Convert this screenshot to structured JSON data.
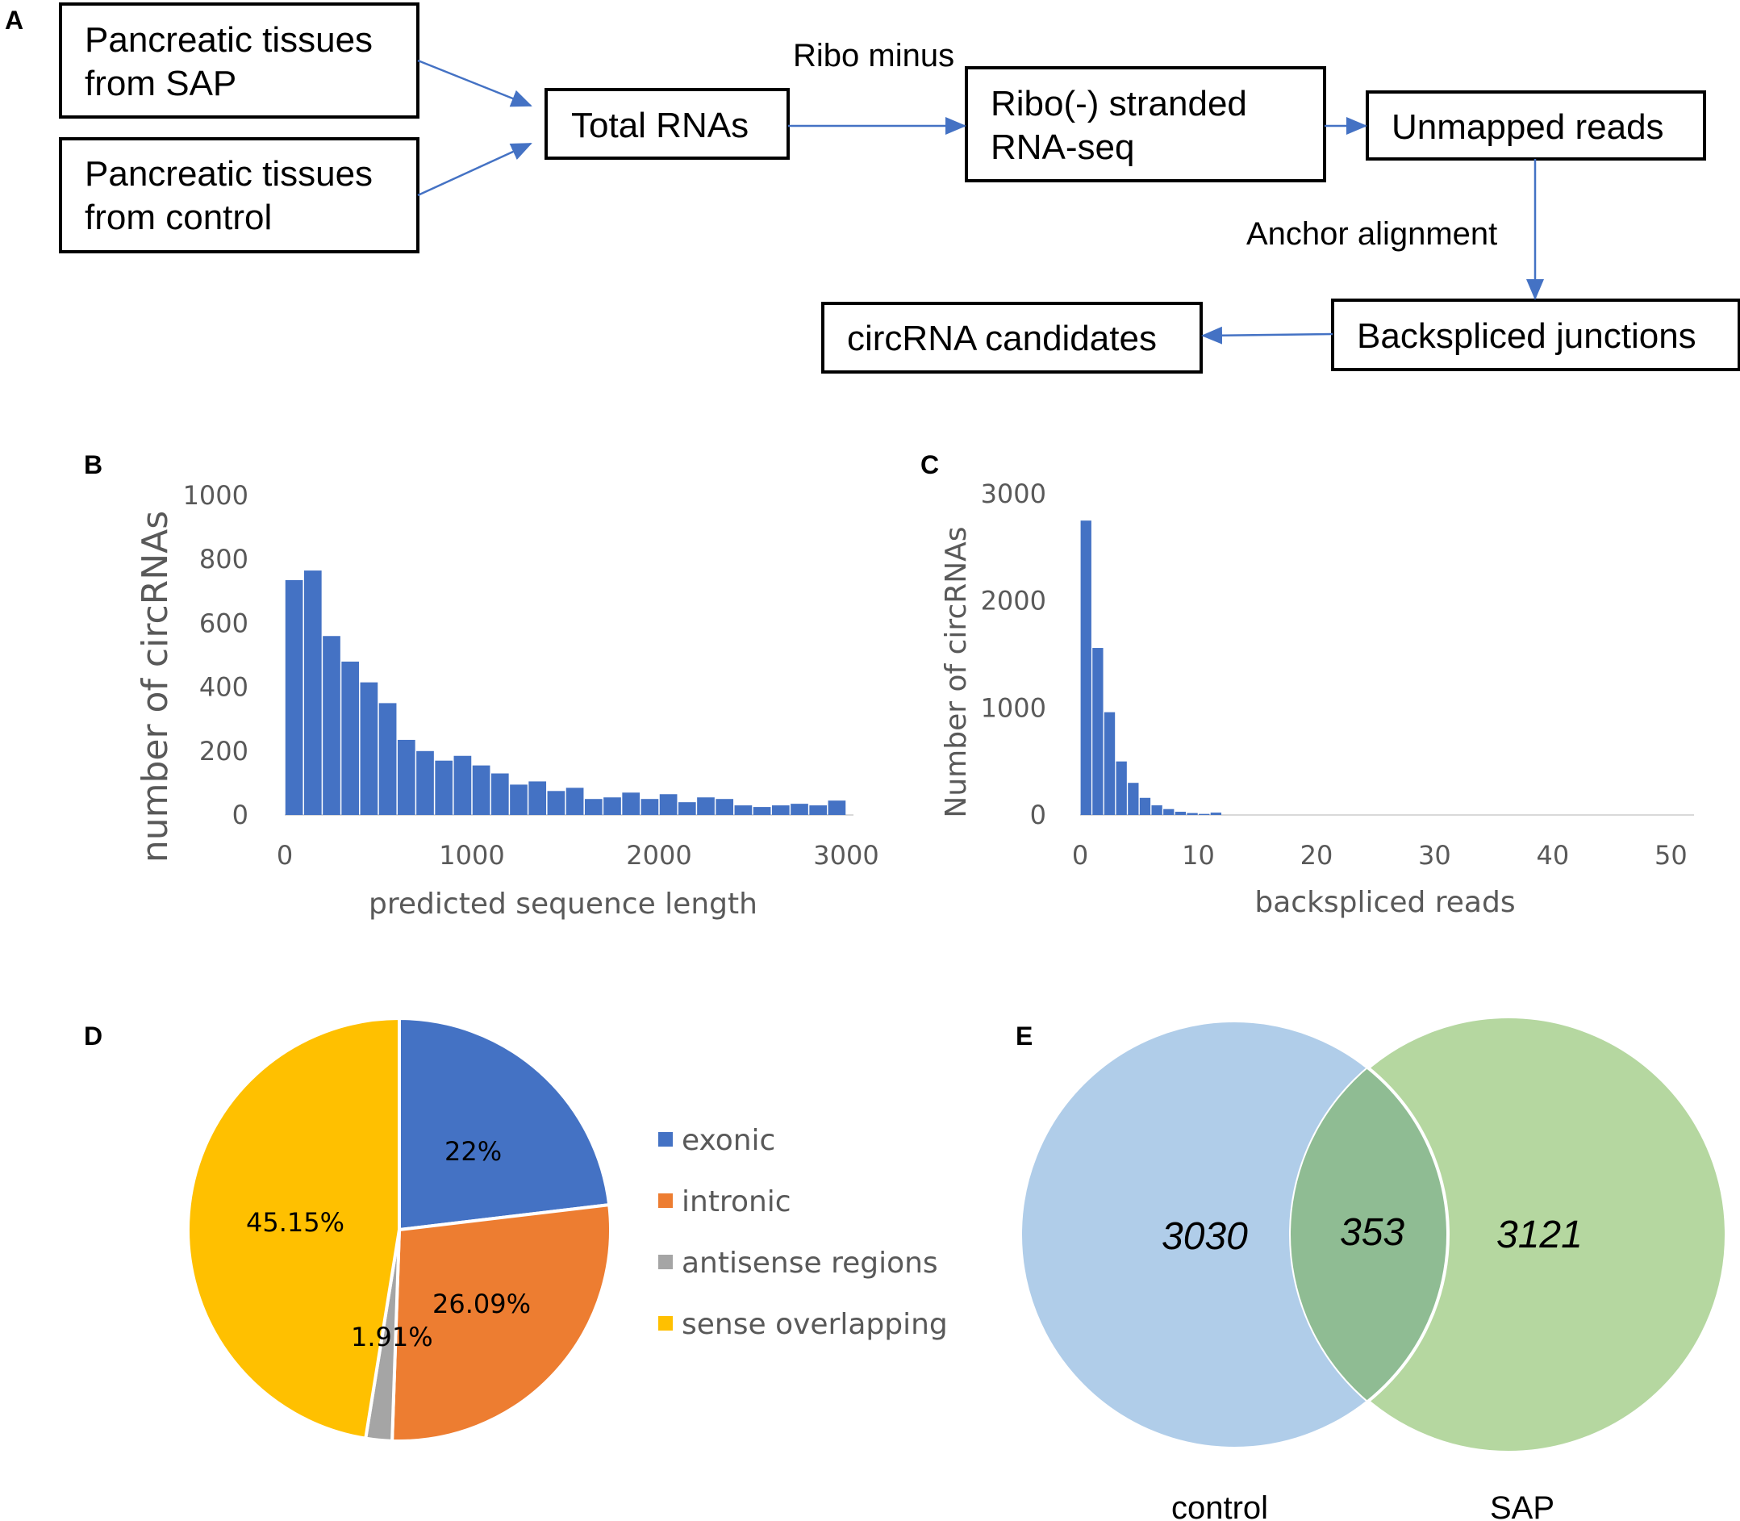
{
  "panels": {
    "a": "A",
    "b": "B",
    "c": "C",
    "d": "D",
    "e": "E"
  },
  "flowchart": {
    "sap_tissue": [
      "Pancreatic tissues",
      "from SAP"
    ],
    "control_tissue": [
      "Pancreatic tissues",
      "from control"
    ],
    "total_rnas": "Total RNAs",
    "ribo_minus": "Ribo minus",
    "rna_seq": [
      "Ribo(-) stranded",
      "RNA-seq"
    ],
    "unmapped": "Unmapped reads",
    "anchor": "Anchor alignment",
    "backspliced": "Backspliced junctions",
    "candidates": "circRNA candidates"
  },
  "chart_data": [
    {
      "id": "B",
      "type": "bar",
      "title": "",
      "xlabel": "predicted sequence length",
      "ylabel": "number of circRNAs",
      "xlim": [
        0,
        3000
      ],
      "ylim": [
        0,
        1000
      ],
      "xticks": [
        "0",
        "1000",
        "2000",
        "3000"
      ],
      "yticks": [
        "0",
        "200",
        "400",
        "600",
        "800",
        "1000"
      ],
      "bin_width": 100,
      "bins": [
        100,
        200,
        300,
        400,
        500,
        600,
        700,
        800,
        900,
        1000,
        1100,
        1200,
        1300,
        1400,
        1500,
        1600,
        1700,
        1800,
        1900,
        2000,
        2100,
        2200,
        2300,
        2400,
        2500,
        2600,
        2700,
        2800,
        2900,
        3000
      ],
      "values": [
        735,
        765,
        560,
        480,
        415,
        350,
        235,
        200,
        170,
        185,
        155,
        130,
        95,
        105,
        75,
        85,
        50,
        55,
        70,
        50,
        65,
        40,
        55,
        50,
        30,
        25,
        30,
        35,
        30,
        45
      ]
    },
    {
      "id": "C",
      "type": "bar",
      "title": "",
      "xlabel": "backspliced reads",
      "ylabel": "Number of circRNAs",
      "xlim": [
        0,
        51
      ],
      "ylim": [
        0,
        3000
      ],
      "xticks": [
        "0",
        "10",
        "20",
        "30",
        "40",
        "50"
      ],
      "yticks": [
        "0",
        "1000",
        "2000",
        "3000"
      ],
      "bins": [
        1,
        2,
        3,
        4,
        5,
        6,
        7,
        8,
        9,
        10,
        11,
        12
      ],
      "values": [
        2750,
        1560,
        960,
        500,
        300,
        160,
        90,
        55,
        30,
        18,
        10,
        22
      ]
    },
    {
      "id": "D",
      "type": "pie",
      "title": "",
      "series": [
        {
          "name": "exonic",
          "value": 22,
          "label": "22%",
          "color": "#4472c4"
        },
        {
          "name": "intronic",
          "value": 26.09,
          "label": "26.09%",
          "color": "#ed7d31"
        },
        {
          "name": "antisense regions",
          "value": 1.91,
          "label": "1.91%",
          "color": "#a5a5a5"
        },
        {
          "name": "sense overlapping",
          "value": 45.15,
          "label": "45.15%",
          "color": "#ffc000"
        }
      ]
    },
    {
      "id": "E",
      "type": "venn",
      "sets": [
        {
          "name": "control",
          "only": "3030",
          "color": "#b0cde9"
        },
        {
          "name": "SAP",
          "only": "3121",
          "color": "#b5d7a0"
        }
      ],
      "intersection": "353",
      "intersection_color": "#8fbc93"
    }
  ]
}
